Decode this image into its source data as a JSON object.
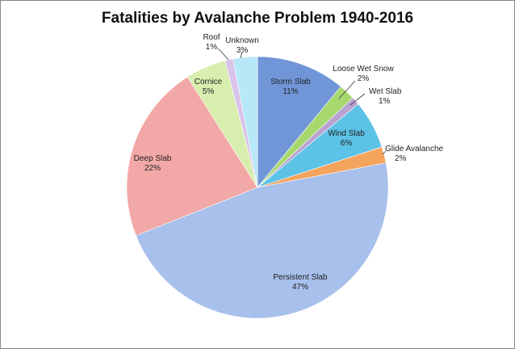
{
  "chart_data": {
    "type": "pie",
    "title": "Fatalities by Avalanche Problem 1940-2016",
    "slices": [
      {
        "label": "Storm Slab",
        "value": 11,
        "value_label": "11%",
        "color": "#7196d8"
      },
      {
        "label": "Loose Wet Snow",
        "value": 2,
        "value_label": "2%",
        "color": "#a6d86e"
      },
      {
        "label": "Wet Slab",
        "value": 1,
        "value_label": "1%",
        "color": "#b9a2d0"
      },
      {
        "label": "Wind Slab",
        "value": 6,
        "value_label": "6%",
        "color": "#5cc2e6"
      },
      {
        "label": "Glide Avalanche",
        "value": 2,
        "value_label": "2%",
        "color": "#f5a45d"
      },
      {
        "label": "Persistent Slab",
        "value": 47,
        "value_label": "47%",
        "color": "#a8c0ec"
      },
      {
        "label": "Deep Slab",
        "value": 22,
        "value_label": "22%",
        "color": "#f2a8a6"
      },
      {
        "label": "Cornice",
        "value": 5,
        "value_label": "5%",
        "color": "#d8eeae"
      },
      {
        "label": "Roof",
        "value": 1,
        "value_label": "1%",
        "color": "#d9c3e8"
      },
      {
        "label": "Unknown",
        "value": 3,
        "value_label": "3%",
        "color": "#b7e8f7"
      }
    ]
  }
}
